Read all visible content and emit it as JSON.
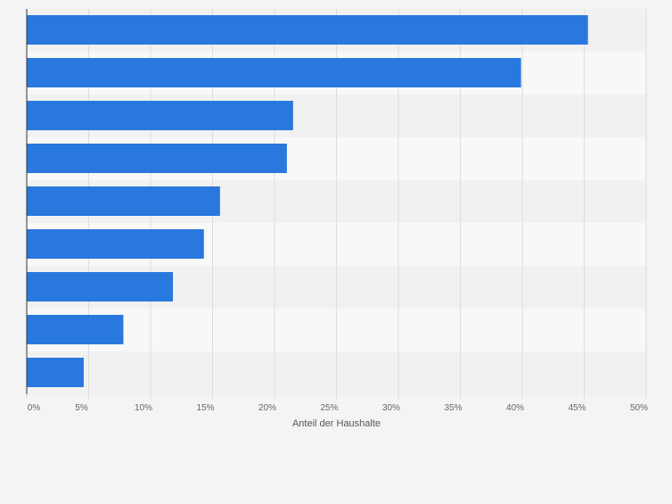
{
  "chart_data": {
    "type": "bar",
    "orientation": "horizontal",
    "categories": [
      "",
      "",
      "",
      "",
      "",
      "",
      "",
      "",
      ""
    ],
    "values": [
      45.3,
      39.9,
      21.5,
      21.0,
      15.6,
      14.3,
      11.8,
      7.8,
      4.6
    ],
    "x_ticks": [
      "0%",
      "5%",
      "10%",
      "15%",
      "20%",
      "25%",
      "30%",
      "35%",
      "40%",
      "45%",
      "50%"
    ],
    "xlabel": "Anteil der Haushalte",
    "xlim": [
      0,
      50
    ],
    "unit": "%",
    "grid": true,
    "colors": {
      "bar": "#2878dd",
      "band_dark": "#f1f1f1",
      "band_light": "#f8f8f8",
      "grid": "#dddddd",
      "axis": "#333333",
      "tick_text": "#666666"
    }
  }
}
